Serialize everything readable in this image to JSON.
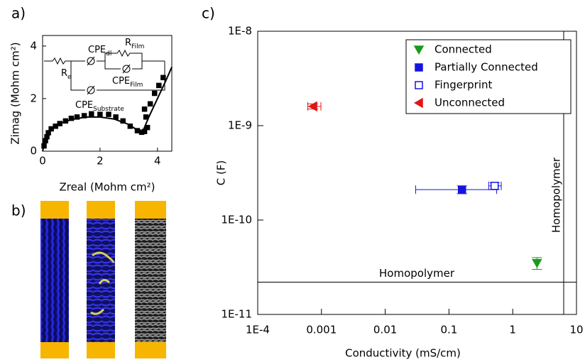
{
  "panel_labels": [
    "a)",
    "b)",
    "c)"
  ],
  "chart_data": [
    {
      "type": "scatter",
      "xlabel": "Zreal (Mohm cm²)",
      "ylabel": "Zimag (Mohm cm²)",
      "xlim": [
        0,
        4.5
      ],
      "ylim": [
        0,
        4.4
      ],
      "xticks": [
        0,
        2,
        4
      ],
      "yticks": [
        0,
        2,
        4
      ],
      "annotations": [
        {
          "text": "R",
          "sub": "e"
        },
        {
          "text": "CPE",
          "sub": "dl"
        },
        {
          "text": "R",
          "sub": "Film"
        },
        {
          "text": "CPE",
          "sub": "Film"
        },
        {
          "text": "CPE",
          "sub": "Substrate"
        }
      ],
      "series": [
        {
          "type": "scatter",
          "marker": "square",
          "color": "#000000",
          "x": [
            0.05,
            0.1,
            0.15,
            0.2,
            0.3,
            0.45,
            0.6,
            0.8,
            1.0,
            1.2,
            1.45,
            1.7,
            2.0,
            2.3,
            2.55,
            2.8,
            3.05,
            3.3,
            3.45,
            3.55,
            3.65,
            3.6,
            3.55,
            3.75,
            3.9,
            4.05,
            4.2
          ],
          "values": [
            0.2,
            0.4,
            0.55,
            0.7,
            0.85,
            0.95,
            1.05,
            1.15,
            1.25,
            1.3,
            1.35,
            1.42,
            1.4,
            1.4,
            1.3,
            1.15,
            0.95,
            0.78,
            0.72,
            0.75,
            0.9,
            1.3,
            1.6,
            1.8,
            2.2,
            2.5,
            2.8
          ]
        },
        {
          "type": "line",
          "color": "#000000",
          "x": [
            0,
            0.1,
            0.3,
            0.6,
            1.0,
            1.5,
            2.0,
            2.5,
            3.0,
            3.3,
            3.5,
            3.7,
            4.0,
            4.3,
            4.5
          ],
          "values": [
            0,
            0.45,
            0.8,
            1.05,
            1.2,
            1.3,
            1.3,
            1.22,
            1.02,
            0.8,
            0.78,
            1.3,
            2.0,
            2.7,
            3.2
          ]
        }
      ]
    },
    {
      "type": "scatter",
      "log_x": true,
      "log_y": true,
      "xlabel": "Conductivity (mS/cm)",
      "ylabel": "C (F)",
      "xlim": [
        0.0001,
        10
      ],
      "ylim": [
        1e-11,
        1e-08
      ],
      "xticks": [
        {
          "value": 0.0001,
          "label": "1E-4"
        },
        0.001,
        0.01,
        0.1,
        1,
        10
      ],
      "yticks": [
        {
          "value": 1e-11,
          "label": "1E-11"
        },
        {
          "value": 1e-10,
          "label": "1E-10"
        },
        {
          "value": 1e-09,
          "label": "1E-9"
        },
        {
          "value": 1e-08,
          "label": "1E-8"
        }
      ],
      "legend": "top-right",
      "reference_lines": [
        {
          "axis": "y",
          "value": 2.2e-11,
          "label": "Homopolymer"
        },
        {
          "axis": "x",
          "value": 6.3,
          "label": "Homopolymer"
        }
      ],
      "series": [
        {
          "name": "Connected",
          "marker": "triangle-down",
          "filled": true,
          "color": "#1a9a1a",
          "x": [
            2.4
          ],
          "values": [
            3.5e-11
          ],
          "xerr_minus": [
            0
          ],
          "xerr_plus": [
            0
          ],
          "yerr": [
            5e-12
          ]
        },
        {
          "name": "Partially Connected",
          "marker": "square",
          "filled": true,
          "color": "#1515e0",
          "x": [
            0.16
          ],
          "values": [
            2.1e-10
          ],
          "xerr_minus": [
            0.13
          ],
          "xerr_plus": [
            0.4
          ],
          "yerr": [
            2e-11
          ]
        },
        {
          "name": "Fingerprint",
          "marker": "square",
          "filled": false,
          "color": "#1515e0",
          "x": [
            0.52
          ],
          "values": [
            2.3e-10
          ],
          "xerr_minus": [
            0.1
          ],
          "xerr_plus": [
            0.14
          ],
          "yerr": [
            2e-11
          ]
        },
        {
          "name": "Unconnected",
          "marker": "triangle-left",
          "filled": true,
          "color": "#e01515",
          "x": [
            0.00074
          ],
          "values": [
            1.6e-09
          ],
          "xerr_minus": [
            0.00013
          ],
          "xerr_plus": [
            0.00024
          ],
          "yerr": [
            1e-10
          ]
        }
      ]
    }
  ]
}
